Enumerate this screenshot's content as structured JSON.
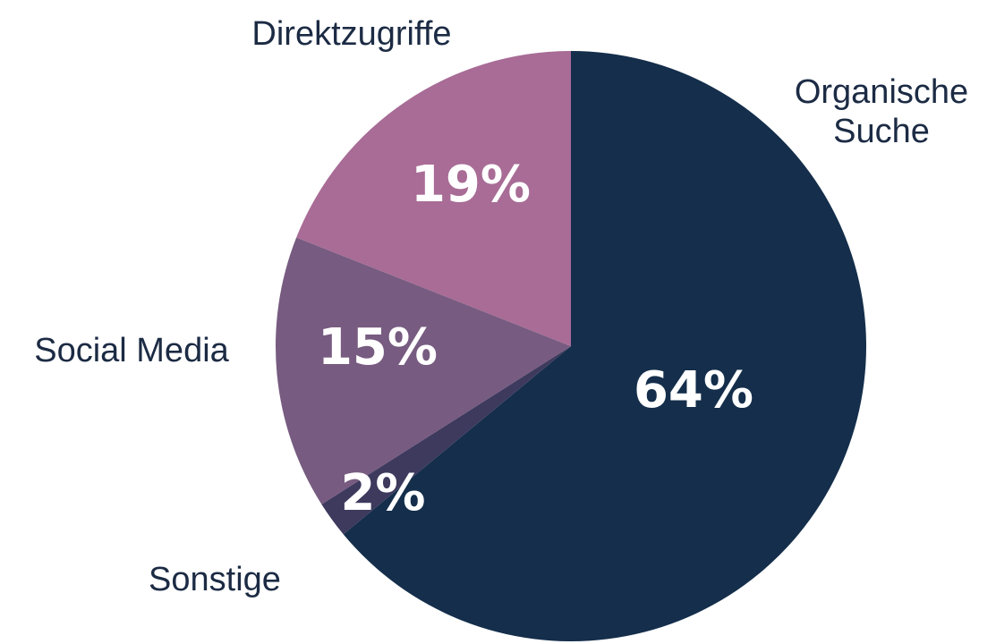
{
  "chart_data": {
    "type": "pie",
    "categories": [
      "Organische Suche",
      "Sonstige",
      "Social Media",
      "Direktzugriffe"
    ],
    "values": [
      64,
      2,
      15,
      19
    ],
    "value_labels": [
      "64%",
      "2%",
      "15%",
      "19%"
    ],
    "colors": [
      "#142e4b",
      "#3d3a5e",
      "#775b80",
      "#a86c96"
    ]
  }
}
